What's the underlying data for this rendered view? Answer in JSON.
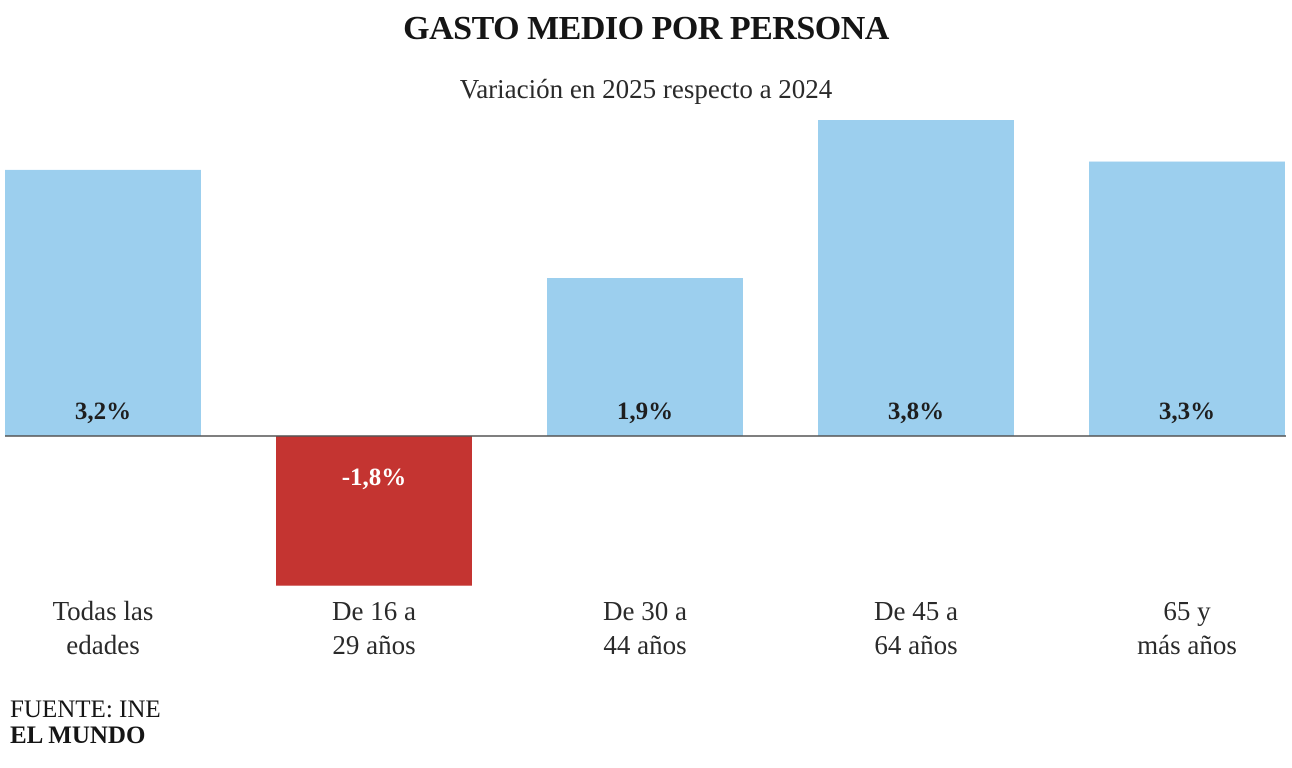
{
  "header": {
    "title": "GASTO MEDIO POR PERSONA",
    "subtitle": "Variación en 2025 respecto a 2024"
  },
  "footer": {
    "source": "FUENTE: INE",
    "brand": "EL MUNDO"
  },
  "chart_data": {
    "type": "bar",
    "title": "GASTO MEDIO POR PERSONA",
    "subtitle": "Variación en 2025 respecto a 2024",
    "categories": [
      [
        "Todas las",
        "edades"
      ],
      [
        "De 16 a",
        "29 años"
      ],
      [
        "De 30 a",
        "44 años"
      ],
      [
        "De 45 a",
        "64 años"
      ],
      [
        "65 y",
        "más años"
      ]
    ],
    "values": [
      3.2,
      -1.8,
      1.9,
      3.8,
      3.3
    ],
    "value_labels": [
      "3,2%",
      "-1,8%",
      "1,9%",
      "3,8%",
      "3,3%"
    ],
    "positive_color": "#9ccfee",
    "negative_color": "#c43431",
    "positive_label_color": "#1e1e1e",
    "negative_label_color": "#ffffff",
    "baseline_color": "#555555",
    "ylim": [
      -1.8,
      3.8
    ],
    "grid": false,
    "legend": "none"
  }
}
